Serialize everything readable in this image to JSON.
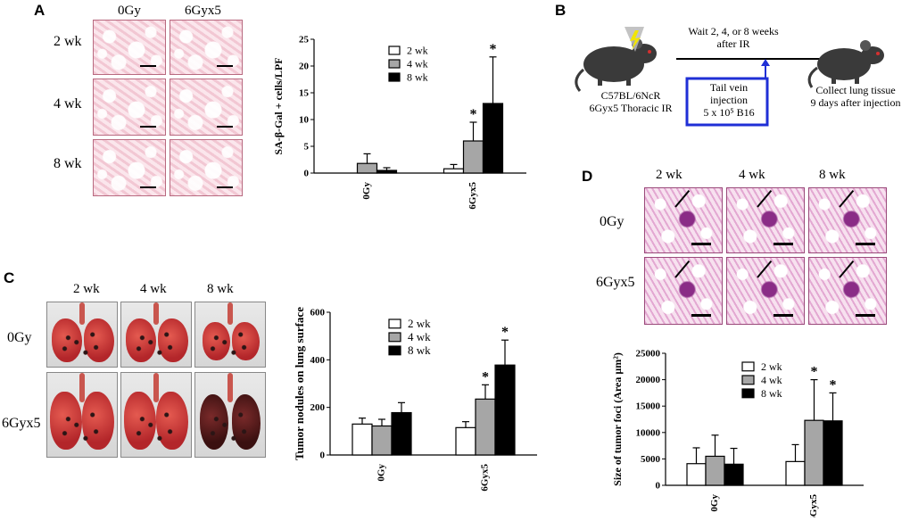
{
  "panels": {
    "A": {
      "label": "A",
      "cols": [
        "0Gy",
        "6Gyx5"
      ],
      "rows": [
        "2 wk",
        "4 wk",
        "8 wk"
      ]
    },
    "B": {
      "label": "B",
      "mouse1_caption": [
        "C57BL/6NcR",
        "6Gyx5  Thoracic IR"
      ],
      "wait_text": [
        "Wait 2, 4, or 8 weeks",
        "after IR"
      ],
      "injection_box": [
        "Tail vein",
        "injection",
        "5 x 10⁵ B16"
      ],
      "collect_text": [
        "Collect lung tissue",
        "9 days after injection"
      ]
    },
    "C": {
      "label": "C",
      "cols": [
        "2 wk",
        "4 wk",
        "8 wk"
      ],
      "rows": [
        "0Gy",
        "6Gyx5"
      ]
    },
    "D": {
      "label": "D",
      "cols": [
        "2 wk",
        "4 wk",
        "8 wk"
      ],
      "rows": [
        "0Gy",
        "6Gyx5"
      ]
    }
  },
  "colors": {
    "wk2": "#ffffff",
    "wk4": "#a6a6a6",
    "wk8": "#000000",
    "box_blue": "#1f2fd6"
  },
  "chart_data": [
    {
      "id": "A",
      "type": "bar",
      "categories": [
        "0Gy",
        "6Gyx5"
      ],
      "series": [
        {
          "name": "2 wk",
          "values": [
            0,
            0.8
          ],
          "errors": [
            0,
            0.8
          ]
        },
        {
          "name": "4 wk",
          "values": [
            1.8,
            6.0
          ],
          "errors": [
            1.8,
            3.5
          ]
        },
        {
          "name": "8 wk",
          "values": [
            0.5,
            13.0
          ],
          "errors": [
            0.5,
            8.7
          ]
        }
      ],
      "significance": [
        [
          false,
          false,
          false
        ],
        [
          false,
          true,
          true
        ]
      ],
      "ylabel": "SA-β-Gal + cells/LPF",
      "ylim": [
        0,
        25
      ],
      "yticks": [
        0,
        5,
        10,
        15,
        20,
        25
      ],
      "legend": "top-center"
    },
    {
      "id": "C",
      "type": "bar",
      "categories": [
        "0Gy",
        "6Gyx5"
      ],
      "series": [
        {
          "name": "2 wk",
          "values": [
            130,
            115
          ],
          "errors": [
            25,
            25
          ]
        },
        {
          "name": "4 wk",
          "values": [
            122,
            235
          ],
          "errors": [
            28,
            60
          ]
        },
        {
          "name": "8 wk",
          "values": [
            178,
            378
          ],
          "errors": [
            42,
            105
          ]
        }
      ],
      "significance": [
        [
          false,
          false,
          false
        ],
        [
          false,
          true,
          true
        ]
      ],
      "ylabel": "Tumor nodules on lung surface",
      "ylim": [
        0,
        600
      ],
      "yticks": [
        0,
        200,
        400,
        600
      ],
      "legend": "top-center"
    },
    {
      "id": "D",
      "type": "bar",
      "categories": [
        "0Gy",
        "6Gyx5"
      ],
      "series": [
        {
          "name": "2 wk",
          "values": [
            4100,
            4500
          ],
          "errors": [
            3000,
            3200
          ]
        },
        {
          "name": "4 wk",
          "values": [
            5500,
            12300
          ],
          "errors": [
            4000,
            7700
          ]
        },
        {
          "name": "8 wk",
          "values": [
            4000,
            12200
          ],
          "errors": [
            3000,
            5300
          ]
        }
      ],
      "significance": [
        [
          false,
          false,
          false
        ],
        [
          false,
          true,
          true
        ]
      ],
      "ylabel": "Size of tumor foci (Area µm²)",
      "ylim": [
        0,
        25000
      ],
      "yticks": [
        0,
        5000,
        10000,
        15000,
        20000,
        25000
      ],
      "legend": "top-center"
    }
  ]
}
